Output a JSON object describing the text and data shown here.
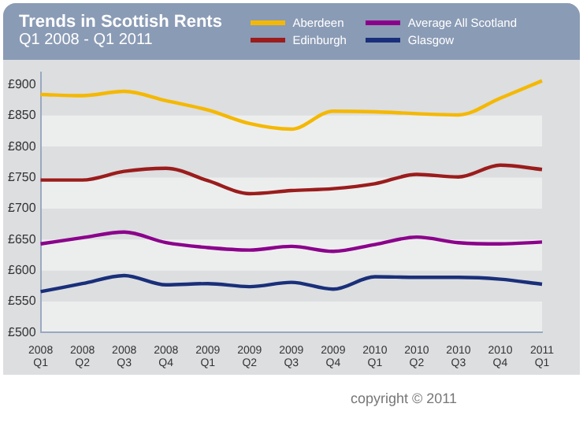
{
  "chart_data": {
    "type": "line",
    "title": "Trends in Scottish Rents",
    "subtitle": "Q1 2008 - Q1  2011",
    "categories": [
      "2008\nQ1",
      "2008\nQ2",
      "2008\nQ3",
      "2008\nQ4",
      "2009\nQ1",
      "2009\nQ2",
      "2009\nQ3",
      "2009\nQ4",
      "2010\nQ1",
      "2010\nQ2",
      "2010\nQ3",
      "2010\nQ4",
      "2011\nQ1"
    ],
    "series": [
      {
        "name": "Aberdeen",
        "color": "#f5b800",
        "values": [
          884,
          882,
          889,
          874,
          859,
          837,
          828,
          857,
          856,
          853,
          851,
          878,
          906
        ]
      },
      {
        "name": "Average All Scotland",
        "color": "#8b008b",
        "values": [
          643,
          653,
          662,
          645,
          637,
          633,
          639,
          631,
          642,
          654,
          645,
          643,
          646
        ]
      },
      {
        "name": "Edinburgh",
        "color": "#9b1c1c",
        "values": [
          746,
          746,
          760,
          765,
          745,
          724,
          729,
          732,
          740,
          755,
          751,
          770,
          763
        ]
      },
      {
        "name": "Glasgow",
        "color": "#1a2f7a",
        "values": [
          566,
          579,
          592,
          577,
          579,
          574,
          581,
          570,
          590,
          589,
          589,
          586,
          578
        ]
      }
    ],
    "ylim": [
      500,
      920
    ],
    "yticks": [
      {
        "value": 500,
        "label": "£500"
      },
      {
        "value": 550,
        "label": "£550"
      },
      {
        "value": 600,
        "label": "£600"
      },
      {
        "value": 650,
        "label": "£650"
      },
      {
        "value": 700,
        "label": "£700"
      },
      {
        "value": 750,
        "label": "£750"
      },
      {
        "value": 800,
        "label": "£800"
      },
      {
        "value": 850,
        "label": "£850"
      },
      {
        "value": 900,
        "label": "£900"
      }
    ],
    "legend": "top right",
    "marker": "none",
    "line_style": "solid",
    "annotations": [
      "copyright © 2011"
    ]
  }
}
